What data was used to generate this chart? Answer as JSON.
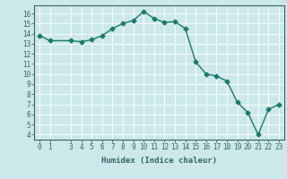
{
  "x": [
    0,
    1,
    3,
    4,
    5,
    6,
    7,
    8,
    9,
    10,
    11,
    12,
    13,
    14,
    15,
    16,
    17,
    18,
    19,
    20,
    21,
    22,
    23
  ],
  "y": [
    13.8,
    13.3,
    13.3,
    13.2,
    13.4,
    13.8,
    14.5,
    15.0,
    15.3,
    16.2,
    15.5,
    15.1,
    15.2,
    14.5,
    11.2,
    10.0,
    9.8,
    9.3,
    7.2,
    6.2,
    4.0,
    6.5,
    7.0
  ],
  "line_color": "#1a7a6e",
  "marker": "D",
  "markersize": 2.5,
  "linewidth": 1.0,
  "xlabel": "Humidex (Indice chaleur)",
  "ylabel": "",
  "xlim": [
    -0.5,
    23.5
  ],
  "ylim": [
    3.5,
    16.8
  ],
  "yticks": [
    4,
    5,
    6,
    7,
    8,
    9,
    10,
    11,
    12,
    13,
    14,
    15,
    16
  ],
  "xticks": [
    0,
    1,
    3,
    4,
    5,
    6,
    7,
    8,
    9,
    10,
    11,
    12,
    13,
    14,
    15,
    16,
    17,
    18,
    19,
    20,
    21,
    22,
    23
  ],
  "bg_color": "#cce8ea",
  "grid_color": "#ffffff",
  "axis_color": "#336666",
  "label_fontsize": 6.5,
  "tick_fontsize": 5.5
}
